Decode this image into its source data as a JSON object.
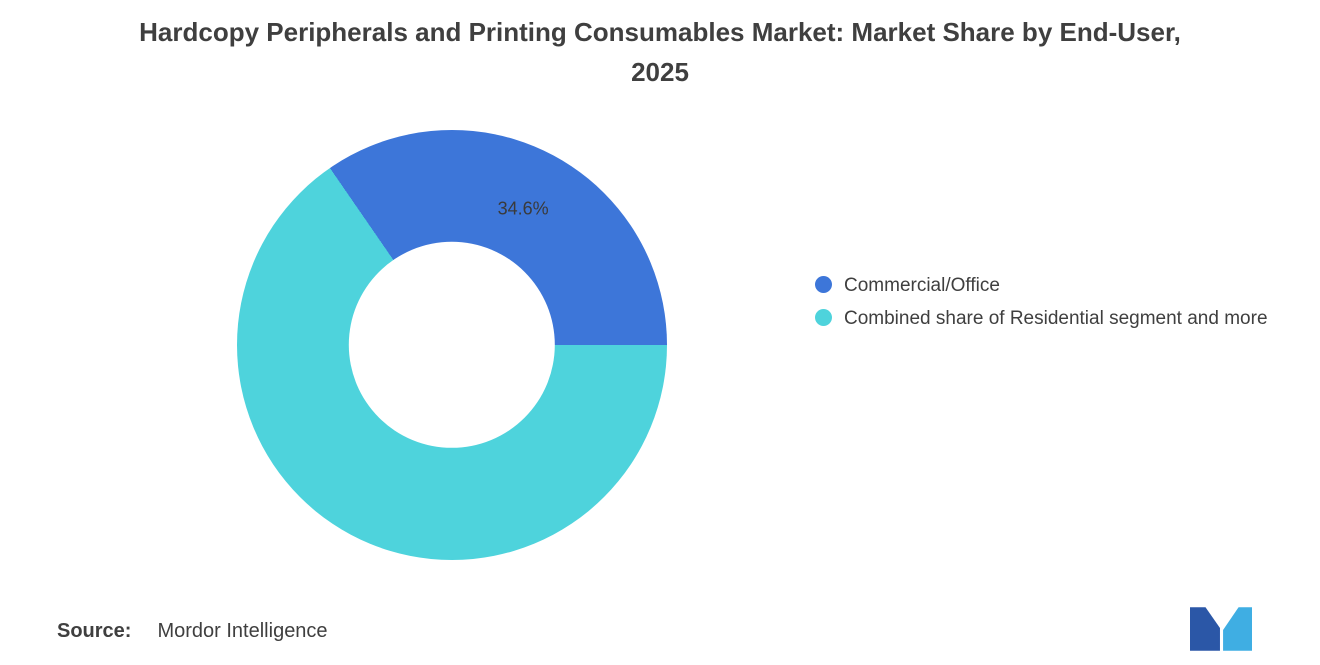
{
  "page": {
    "background": "#ffffff"
  },
  "title": "Hardcopy Peripherals and Printing Consumables Market: Market Share by End-User, 2025",
  "chart_data": {
    "type": "pie",
    "donut": true,
    "title": "Hardcopy Peripherals and Printing Consumables Market: Market Share by End-User, 2025",
    "slices": [
      {
        "label": "Commercial/Office",
        "value": 34.6,
        "color": "#3D76D9",
        "data_label": "34.6%"
      },
      {
        "label": "Combined share of Residential segment and more",
        "value": 65.4,
        "color": "#4ED3DC",
        "data_label": ""
      }
    ],
    "start_angle_deg": -34.6,
    "legend_position": "right",
    "grid": false
  },
  "source": {
    "label": "Source:",
    "value": "Mordor Intelligence"
  },
  "logo": {
    "name": "mordor-intelligence-logo",
    "colors": {
      "dark": "#2B57A7",
      "light": "#3FAEE3"
    }
  }
}
